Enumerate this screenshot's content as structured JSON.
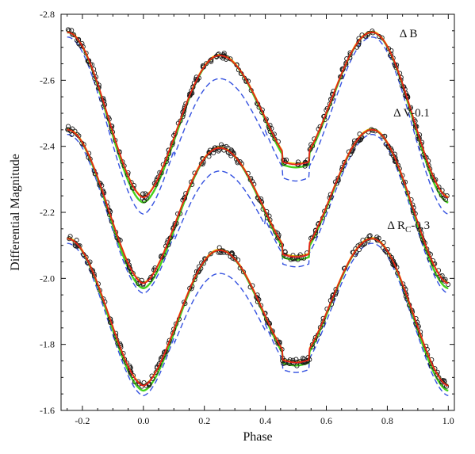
{
  "chart_data": {
    "type": "scatter",
    "xlabel": "Phase",
    "ylabel": "Differential Magnitude",
    "xlim": [
      -0.27,
      1.02
    ],
    "ylim": [
      -2.8,
      -1.6
    ],
    "y_inverted": true,
    "x_ticks": [
      -0.2,
      0,
      0.2,
      0.4,
      0.6,
      0.8,
      1.0
    ],
    "x_tick_labels": [
      "-0.2",
      "0.0",
      "0.2",
      "0.4",
      "0.6",
      "0.8",
      "1.0"
    ],
    "y_ticks": [
      -2.8,
      -2.6,
      -2.4,
      -2.2,
      -2.0,
      -1.8,
      -1.6
    ],
    "y_tick_labels": [
      "-2.8",
      "-2.6",
      "-2.4",
      "-2.2",
      "-2.0",
      "-1.8",
      "-1.6"
    ],
    "grid": false,
    "legend": "none",
    "annotations": [
      {
        "text": "Δ B",
        "x": 0.84,
        "y": -2.73
      },
      {
        "text": "Δ V-0.1",
        "x": 0.82,
        "y": -2.49
      },
      {
        "text": "Δ R",
        "sub": "C",
        "suffix": "-0.3",
        "x": 0.8,
        "y": -2.15
      }
    ],
    "colors": {
      "points": "#1a1a1a",
      "fit_red": "#e8231a",
      "fit_green": "#44d11c",
      "fit_yellow": "#e8c000",
      "fit_blue_dashed": "#3552e0"
    },
    "series": [
      {
        "band_text": "Δ B",
        "max_primary": -2.745,
        "max_secondary": -2.675,
        "min_primary": -2.245,
        "min_secondary": -2.345,
        "blue_offset_primary": 0.05,
        "blue_offset_secondary": 0.05
      },
      {
        "band_text": "Δ V-0.1",
        "max_primary": -2.45,
        "max_secondary": -2.395,
        "min_primary": -1.985,
        "min_secondary": -2.065,
        "blue_offset_primary": 0.03,
        "blue_offset_secondary": 0.03
      },
      {
        "band_text": "Δ RC-0.3",
        "max_primary": -2.12,
        "max_secondary": -2.085,
        "min_primary": -1.675,
        "min_secondary": -1.745,
        "blue_offset_primary": 0.03,
        "blue_offset_secondary": 0.03
      }
    ]
  }
}
